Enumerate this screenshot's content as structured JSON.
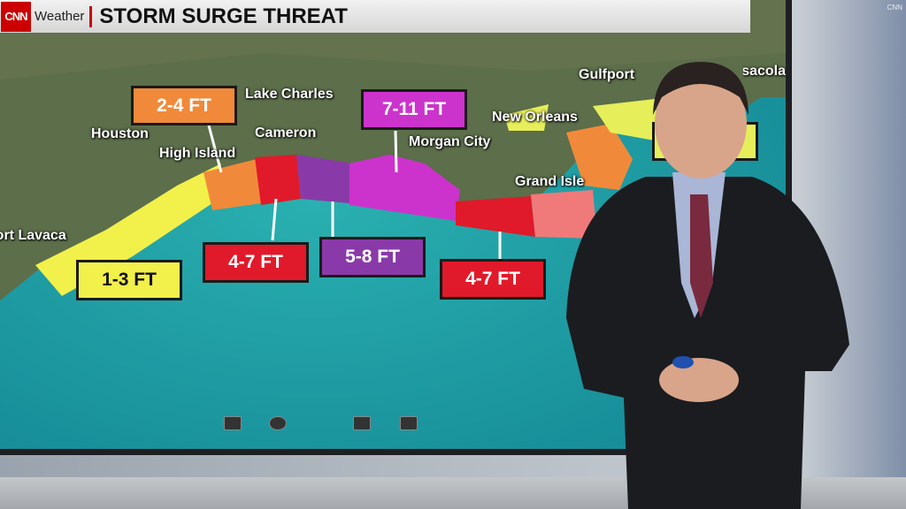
{
  "header": {
    "logo": "CNN",
    "section": "Weather",
    "title": "STORM SURGE THREAT"
  },
  "cities": [
    {
      "name": "Lake Charles"
    },
    {
      "name": "Houston"
    },
    {
      "name": "Cameron"
    },
    {
      "name": "High Island"
    },
    {
      "name": "Morgan City"
    },
    {
      "name": "New Orleans"
    },
    {
      "name": "Gulfport"
    },
    {
      "name": "Pensacola"
    },
    {
      "name": "Grand Isle"
    },
    {
      "name": "Port Lavaca"
    }
  ],
  "surge_labels": [
    {
      "text": "2-4 FT",
      "color": "#f08a3a"
    },
    {
      "text": "7-11 FT",
      "color": "#cc33cc"
    },
    {
      "text": "1-3 FT",
      "color": "#f2f04a"
    },
    {
      "text": "4-7 FT",
      "color": "#e01a2a"
    },
    {
      "text": "5-8 FT",
      "color": "#8a3aa8"
    },
    {
      "text": "4-7 FT",
      "color": "#e01a2a"
    }
  ],
  "controls": [
    "map-icon",
    "refresh-icon",
    "draw-icon",
    "pen-icon"
  ],
  "watermark": "CNN",
  "colors": {
    "water": "#1aa0a8",
    "land": "#5c6e4a"
  }
}
